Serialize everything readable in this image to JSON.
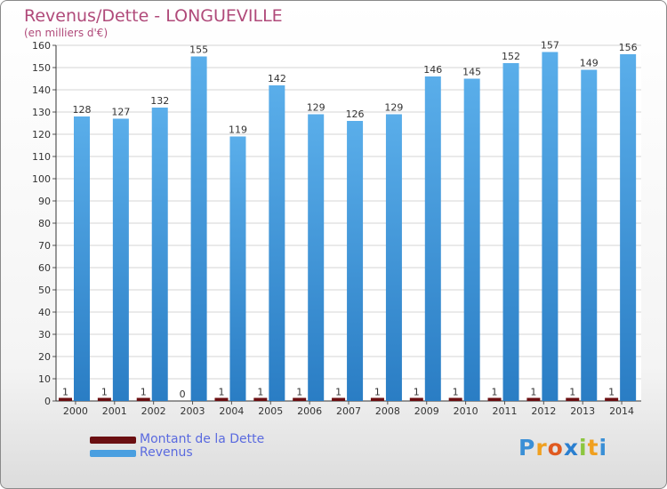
{
  "chart_data": {
    "type": "bar",
    "title": "Revenus/Dette - LONGUEVILLE",
    "subtitle": "(en milliers d'€)",
    "categories": [
      "2000",
      "2001",
      "2002",
      "2003",
      "2004",
      "2005",
      "2006",
      "2007",
      "2008",
      "2009",
      "2010",
      "2011",
      "2012",
      "2013",
      "2014"
    ],
    "series": [
      {
        "name": "Montant de la Dette",
        "color": "#6b0f12",
        "values": [
          1,
          1,
          1,
          0,
          1,
          1,
          1,
          1,
          1,
          1,
          1,
          1,
          1,
          1,
          1
        ]
      },
      {
        "name": "Revenus",
        "color": "#4a9fe0",
        "values": [
          128,
          127,
          132,
          155,
          119,
          142,
          129,
          126,
          129,
          146,
          145,
          152,
          157,
          149,
          156
        ]
      }
    ],
    "ylim": [
      0,
      160
    ],
    "yticks": [
      0,
      10,
      20,
      30,
      40,
      50,
      60,
      70,
      80,
      90,
      100,
      110,
      120,
      130,
      140,
      150,
      160
    ],
    "grid": true,
    "legend_position": "bottom-left"
  },
  "logo": {
    "letters": [
      "P",
      "r",
      "o",
      "x",
      "i",
      "t",
      "i"
    ],
    "colors": [
      "#3a8fd6",
      "#f0a020",
      "#e05a20",
      "#2a7fd0",
      "#8cc63f",
      "#f0a020",
      "#3a8fd6"
    ]
  }
}
